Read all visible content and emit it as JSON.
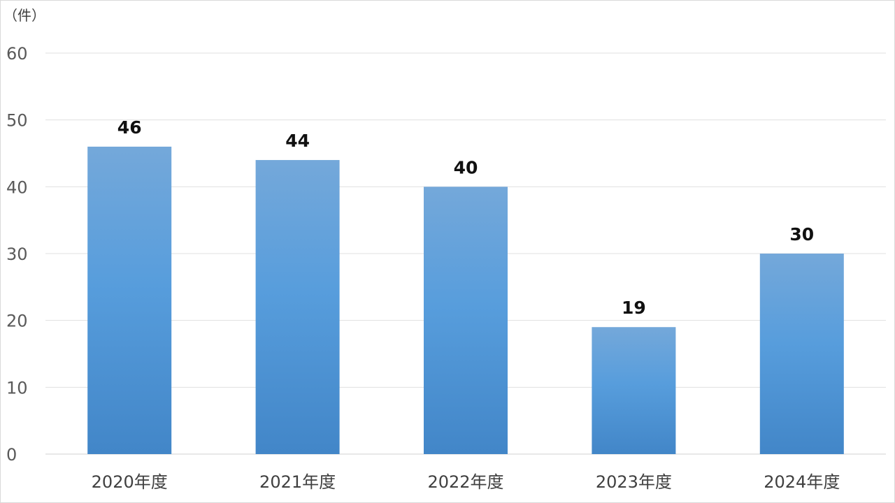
{
  "chart_data": {
    "type": "bar",
    "categories": [
      "2020年度",
      "2021年度",
      "2022年度",
      "2023年度",
      "2024年度"
    ],
    "values": [
      46,
      44,
      40,
      19,
      30
    ],
    "title": "",
    "xlabel": "",
    "ylabel": "（件）",
    "ylim": [
      0,
      60
    ],
    "yticks": [
      0,
      10,
      20,
      30,
      40,
      50,
      60
    ],
    "grid": true,
    "legend": "none",
    "data_labels": true,
    "colors": {
      "bar_top": "#74a8da",
      "bar_mid": "#579ddc",
      "bar_bottom": "#4286c8",
      "gridline": "#e0e0e0",
      "label": "#111111"
    }
  }
}
